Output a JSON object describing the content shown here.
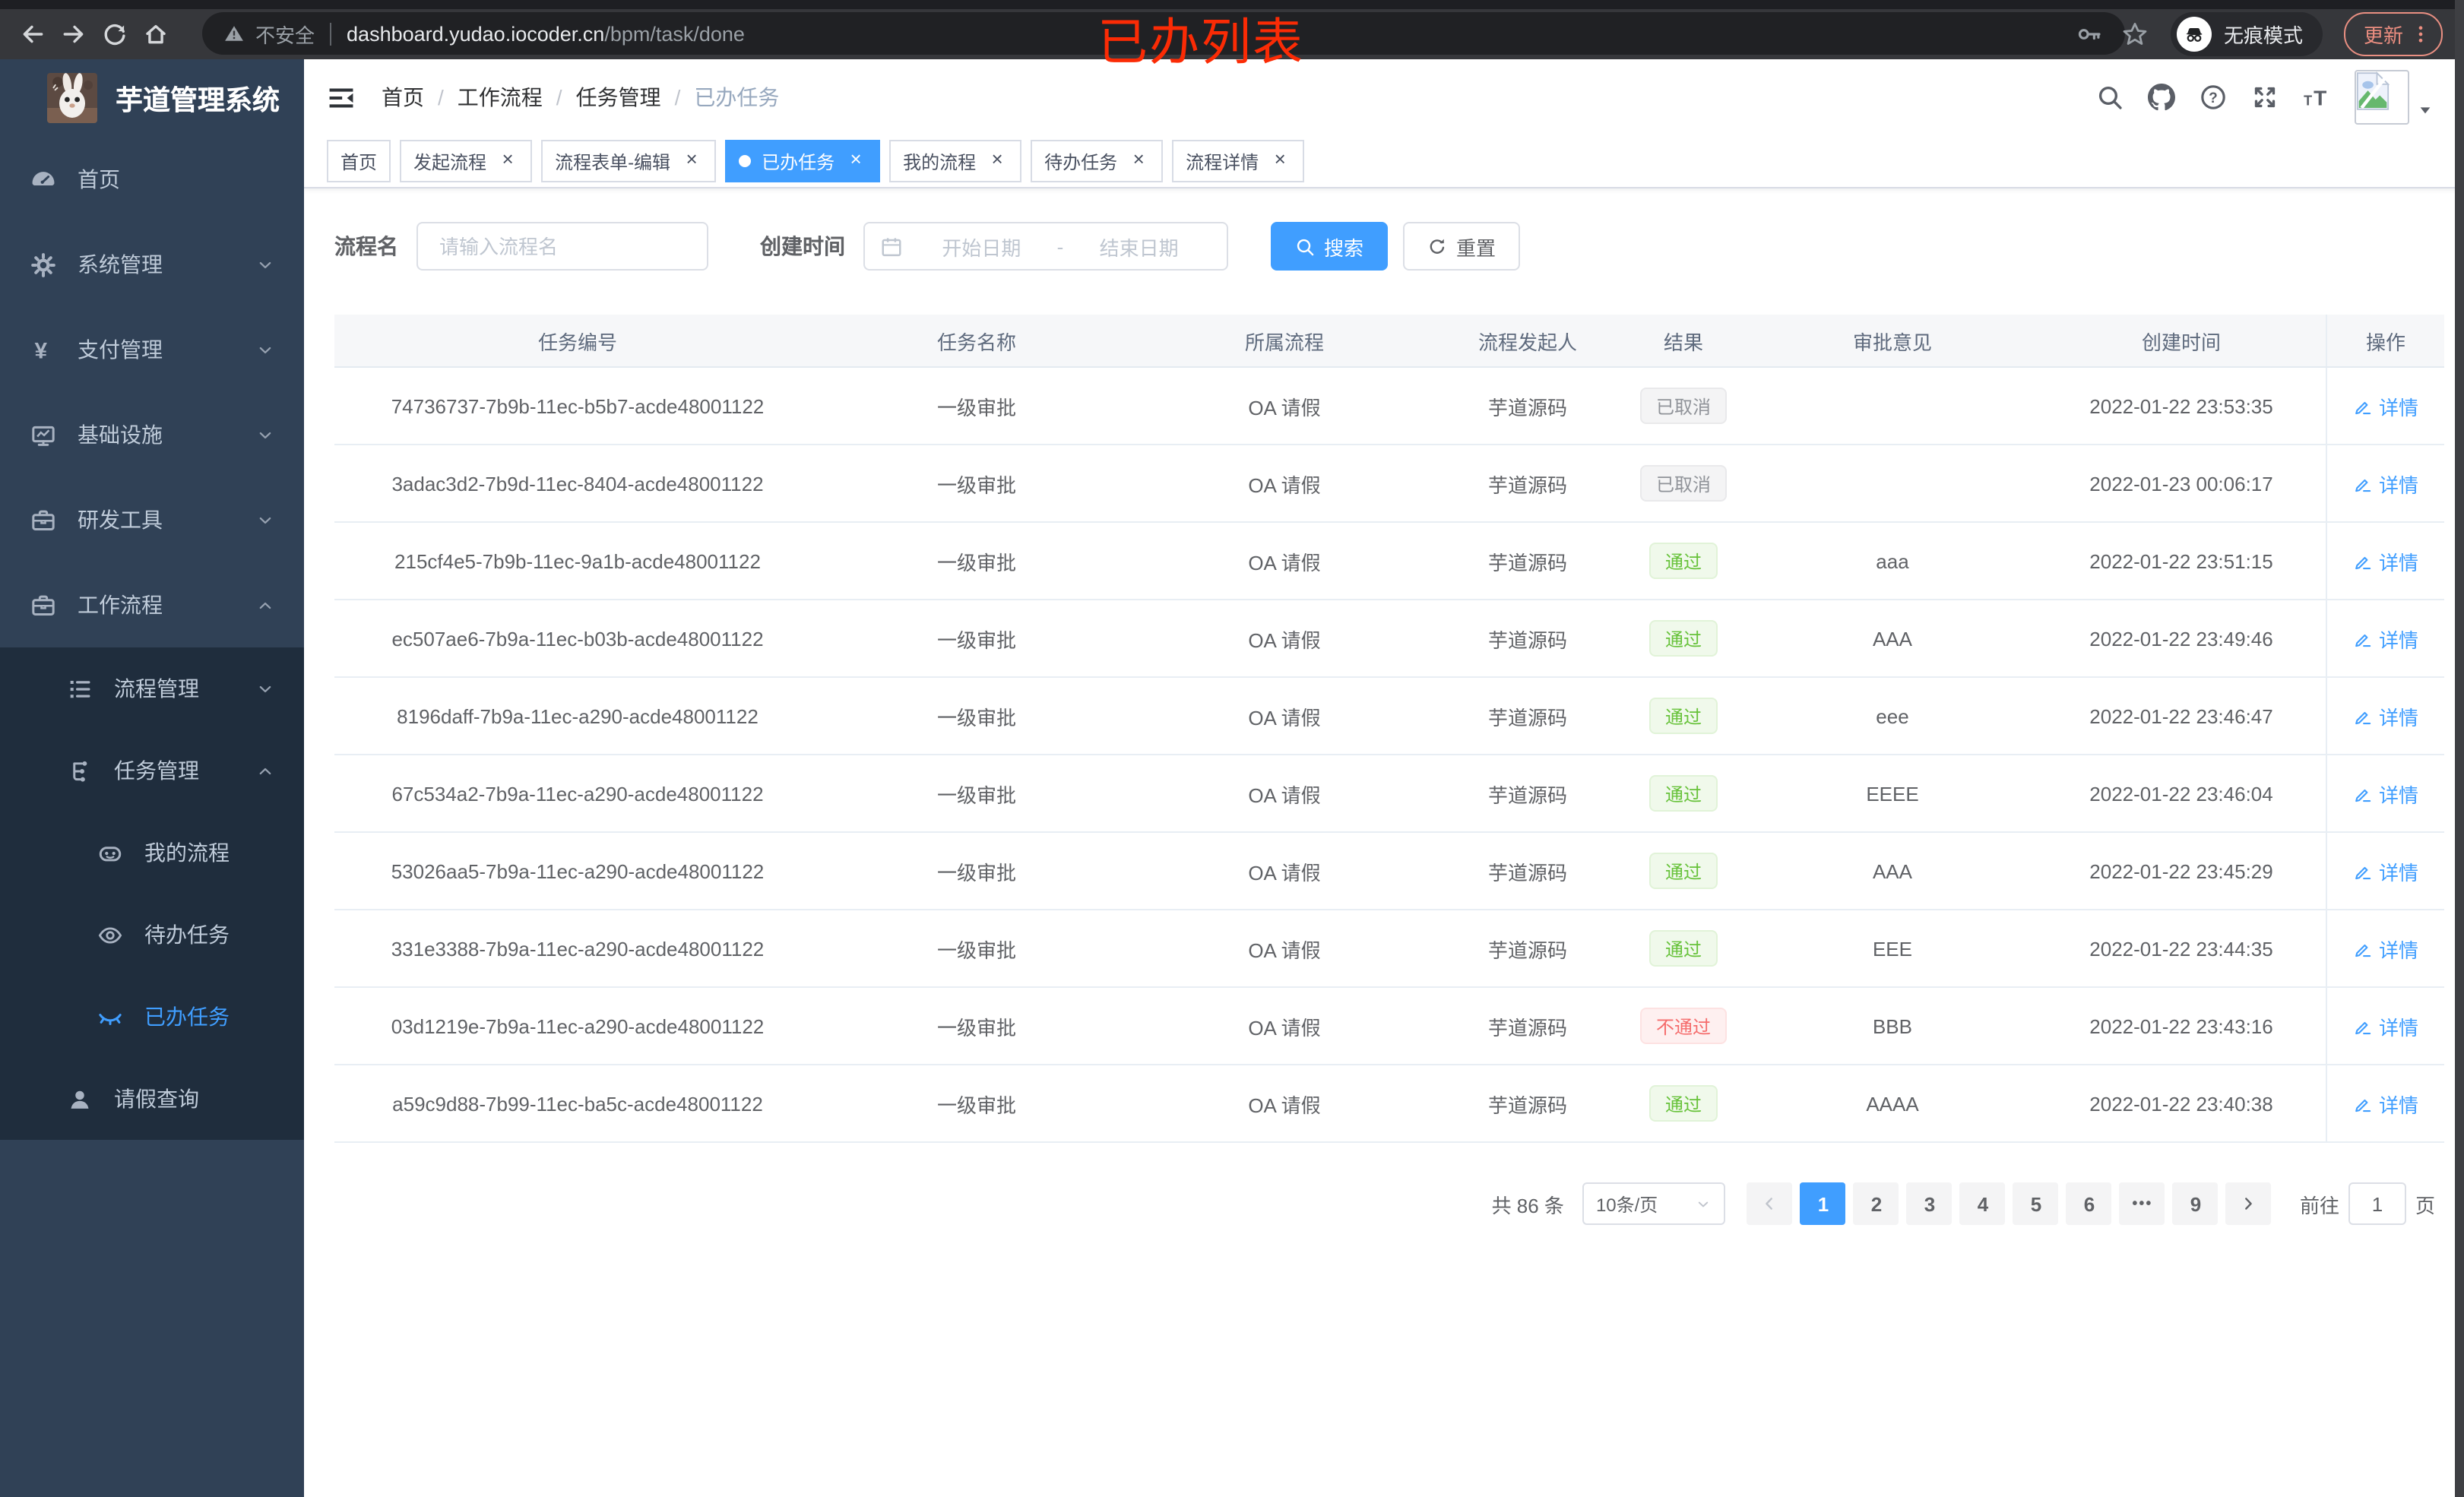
{
  "colors": {
    "accent": "#409eff",
    "sidebar_bg": "#304156",
    "submenu_bg": "#1f2d3d",
    "success": "#67c23a",
    "danger": "#f56c6c",
    "info": "#909399",
    "annotation_red": "#fb2b05"
  },
  "browser": {
    "security_label": "不安全",
    "url_host": "dashboard.yudao.iocoder.cn",
    "url_path": "/bpm/task/done",
    "incognito_label": "无痕模式",
    "update_label": "更新"
  },
  "annotation": {
    "text": "已办列表"
  },
  "sidebar": {
    "title": "芋道管理系统",
    "menu": [
      {
        "name": "home",
        "label": "首页",
        "icon": "gauge",
        "level": 1
      },
      {
        "name": "system-management",
        "label": "系统管理",
        "icon": "gear",
        "level": 1,
        "chevron": "down"
      },
      {
        "name": "payment-management",
        "label": "支付管理",
        "icon": "yen",
        "level": 1,
        "chevron": "down"
      },
      {
        "name": "infrastructure",
        "label": "基础设施",
        "icon": "monitor",
        "level": 1,
        "chevron": "down"
      },
      {
        "name": "dev-tools",
        "label": "研发工具",
        "icon": "briefcase",
        "level": 1,
        "chevron": "down"
      },
      {
        "name": "workflow",
        "label": "工作流程",
        "icon": "briefcase",
        "level": 1,
        "chevron": "up"
      },
      {
        "name": "process-management",
        "label": "流程管理",
        "icon": "list",
        "level": 2,
        "sub": true,
        "chevron": "down"
      },
      {
        "name": "task-management",
        "label": "任务管理",
        "icon": "flow",
        "level": 2,
        "sub": true,
        "chevron": "up"
      },
      {
        "name": "my-process",
        "label": "我的流程",
        "icon": "robot",
        "level": 3,
        "sub": true
      },
      {
        "name": "todo-tasks",
        "label": "待办任务",
        "icon": "eye",
        "level": 3,
        "sub": true
      },
      {
        "name": "done-tasks",
        "label": "已办任务",
        "icon": "eye-closed",
        "level": 3,
        "sub": true,
        "active": true
      },
      {
        "name": "leave-query",
        "label": "请假查询",
        "icon": "user",
        "level": 2,
        "sub": true
      }
    ]
  },
  "navbar": {
    "breadcrumb": [
      "首页",
      "工作流程",
      "任务管理",
      "已办任务"
    ]
  },
  "tabs": [
    {
      "name": "home",
      "label": "首页",
      "closable": false
    },
    {
      "name": "start-process",
      "label": "发起流程",
      "closable": true
    },
    {
      "name": "process-form-edit",
      "label": "流程表单-编辑",
      "closable": true
    },
    {
      "name": "done-tasks",
      "label": "已办任务",
      "closable": true,
      "active": true
    },
    {
      "name": "my-process",
      "label": "我的流程",
      "closable": true
    },
    {
      "name": "todo-tasks",
      "label": "待办任务",
      "closable": true
    },
    {
      "name": "process-detail",
      "label": "流程详情",
      "closable": true
    }
  ],
  "filters": {
    "name_label": "流程名",
    "name_placeholder": "请输入流程名",
    "time_label": "创建时间",
    "date_start_placeholder": "开始日期",
    "date_separator": "-",
    "date_end_placeholder": "结束日期",
    "search_label": "搜索",
    "reset_label": "重置"
  },
  "table": {
    "headers": [
      "任务编号",
      "任务名称",
      "所属流程",
      "流程发起人",
      "结果",
      "审批意见",
      "创建时间",
      "操作"
    ],
    "detail_label": "详情",
    "rows": [
      {
        "id": "74736737-7b9b-11ec-b5b7-acde48001122",
        "task_name": "一级审批",
        "process": "OA 请假",
        "starter": "芋道源码",
        "result": "已取消",
        "result_type": "info",
        "opinion": "",
        "created": "2022-01-22 23:53:35"
      },
      {
        "id": "3adac3d2-7b9d-11ec-8404-acde48001122",
        "task_name": "一级审批",
        "process": "OA 请假",
        "starter": "芋道源码",
        "result": "已取消",
        "result_type": "info",
        "opinion": "",
        "created": "2022-01-23 00:06:17"
      },
      {
        "id": "215cf4e5-7b9b-11ec-9a1b-acde48001122",
        "task_name": "一级审批",
        "process": "OA 请假",
        "starter": "芋道源码",
        "result": "通过",
        "result_type": "success",
        "opinion": "aaa",
        "created": "2022-01-22 23:51:15"
      },
      {
        "id": "ec507ae6-7b9a-11ec-b03b-acde48001122",
        "task_name": "一级审批",
        "process": "OA 请假",
        "starter": "芋道源码",
        "result": "通过",
        "result_type": "success",
        "opinion": "AAA",
        "created": "2022-01-22 23:49:46"
      },
      {
        "id": "8196daff-7b9a-11ec-a290-acde48001122",
        "task_name": "一级审批",
        "process": "OA 请假",
        "starter": "芋道源码",
        "result": "通过",
        "result_type": "success",
        "opinion": "eee",
        "created": "2022-01-22 23:46:47"
      },
      {
        "id": "67c534a2-7b9a-11ec-a290-acde48001122",
        "task_name": "一级审批",
        "process": "OA 请假",
        "starter": "芋道源码",
        "result": "通过",
        "result_type": "success",
        "opinion": "EEEE",
        "created": "2022-01-22 23:46:04"
      },
      {
        "id": "53026aa5-7b9a-11ec-a290-acde48001122",
        "task_name": "一级审批",
        "process": "OA 请假",
        "starter": "芋道源码",
        "result": "通过",
        "result_type": "success",
        "opinion": "AAA",
        "created": "2022-01-22 23:45:29"
      },
      {
        "id": "331e3388-7b9a-11ec-a290-acde48001122",
        "task_name": "一级审批",
        "process": "OA 请假",
        "starter": "芋道源码",
        "result": "通过",
        "result_type": "success",
        "opinion": "EEE",
        "created": "2022-01-22 23:44:35"
      },
      {
        "id": "03d1219e-7b9a-11ec-a290-acde48001122",
        "task_name": "一级审批",
        "process": "OA 请假",
        "starter": "芋道源码",
        "result": "不通过",
        "result_type": "danger",
        "opinion": "BBB",
        "created": "2022-01-22 23:43:16"
      },
      {
        "id": "a59c9d88-7b99-11ec-ba5c-acde48001122",
        "task_name": "一级审批",
        "process": "OA 请假",
        "starter": "芋道源码",
        "result": "通过",
        "result_type": "success",
        "opinion": "AAAA",
        "created": "2022-01-22 23:40:38"
      }
    ]
  },
  "pagination": {
    "total_label": "共 86 条",
    "page_size_label": "10条/页",
    "pages": [
      "1",
      "2",
      "3",
      "4",
      "5",
      "6",
      "•••",
      "9"
    ],
    "active_page": "1",
    "goto_label": "前往",
    "goto_value": "1",
    "goto_unit": "页"
  }
}
